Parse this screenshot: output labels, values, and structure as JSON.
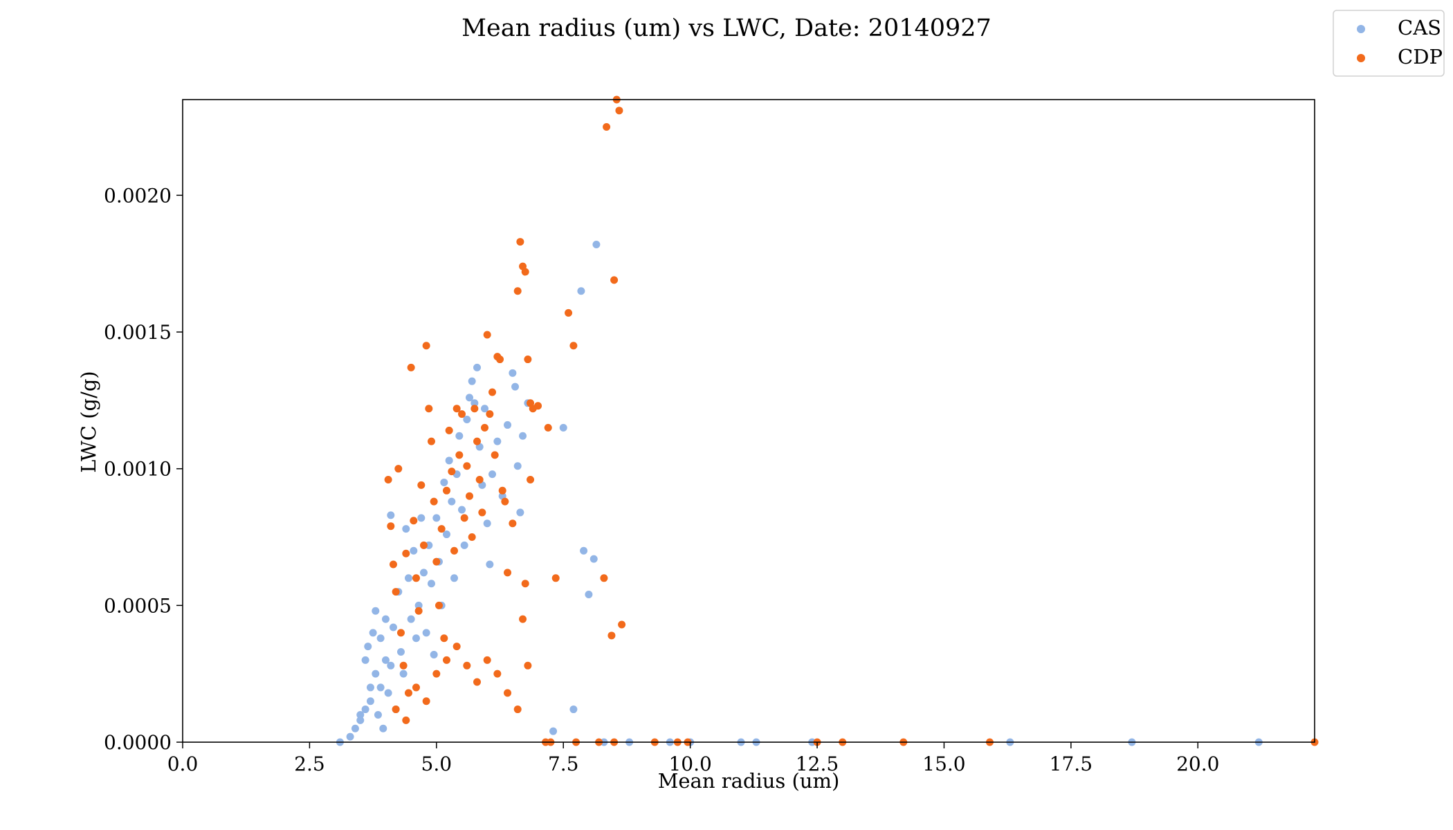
{
  "chart_data": {
    "type": "scatter",
    "title": "Mean radius (um) vs LWC, Date: 20140927",
    "xlabel": "Mean radius (um)",
    "ylabel": "LWC (g/g)",
    "xlim": [
      0,
      22.3
    ],
    "ylim": [
      0,
      0.00235
    ],
    "xticks": [
      0.0,
      2.5,
      5.0,
      7.5,
      10.0,
      12.5,
      15.0,
      17.5,
      20.0
    ],
    "xtick_labels": [
      "0.0",
      "2.5",
      "5.0",
      "7.5",
      "10.0",
      "12.5",
      "15.0",
      "17.5",
      "20.0"
    ],
    "yticks": [
      0.0,
      0.0005,
      0.001,
      0.0015,
      0.002
    ],
    "ytick_labels": [
      "0.0000",
      "0.0005",
      "0.0010",
      "0.0015",
      "0.0020"
    ],
    "grid": false,
    "legend_position": "top-right",
    "series": [
      {
        "name": "CAS",
        "color": "#92b5e6",
        "points": [
          [
            3.1,
            0.0
          ],
          [
            3.3,
            2e-05
          ],
          [
            3.4,
            5e-05
          ],
          [
            3.5,
            8e-05
          ],
          [
            3.5,
            0.0001
          ],
          [
            3.6,
            0.00012
          ],
          [
            3.6,
            0.0003
          ],
          [
            3.65,
            0.00035
          ],
          [
            3.7,
            0.0002
          ],
          [
            3.7,
            0.00015
          ],
          [
            3.75,
            0.0004
          ],
          [
            3.8,
            0.00048
          ],
          [
            3.8,
            0.00025
          ],
          [
            3.85,
            0.0001
          ],
          [
            3.9,
            0.00038
          ],
          [
            3.9,
            0.0002
          ],
          [
            3.95,
            5e-05
          ],
          [
            4.0,
            0.0003
          ],
          [
            4.0,
            0.00045
          ],
          [
            4.05,
            0.00018
          ],
          [
            4.1,
            0.00083
          ],
          [
            4.1,
            0.00028
          ],
          [
            4.15,
            0.00042
          ],
          [
            4.2,
            0.00012
          ],
          [
            4.25,
            0.00055
          ],
          [
            4.3,
            0.00033
          ],
          [
            4.35,
            0.00025
          ],
          [
            4.4,
            0.00078
          ],
          [
            4.45,
            0.0006
          ],
          [
            4.5,
            0.00045
          ],
          [
            4.55,
            0.0007
          ],
          [
            4.6,
            0.00038
          ],
          [
            4.65,
            0.0005
          ],
          [
            4.7,
            0.00082
          ],
          [
            4.75,
            0.00062
          ],
          [
            4.8,
            0.0004
          ],
          [
            4.85,
            0.00072
          ],
          [
            4.9,
            0.00058
          ],
          [
            4.95,
            0.00032
          ],
          [
            5.0,
            0.00082
          ],
          [
            5.05,
            0.00066
          ],
          [
            5.1,
            0.0005
          ],
          [
            5.15,
            0.00095
          ],
          [
            5.2,
            0.00076
          ],
          [
            5.25,
            0.00103
          ],
          [
            5.3,
            0.00088
          ],
          [
            5.35,
            0.0006
          ],
          [
            5.4,
            0.00098
          ],
          [
            5.45,
            0.00112
          ],
          [
            5.5,
            0.00085
          ],
          [
            5.55,
            0.00072
          ],
          [
            5.6,
            0.00118
          ],
          [
            5.65,
            0.00126
          ],
          [
            5.7,
            0.00132
          ],
          [
            5.75,
            0.00124
          ],
          [
            5.8,
            0.00137
          ],
          [
            5.85,
            0.00108
          ],
          [
            5.9,
            0.00094
          ],
          [
            5.95,
            0.00122
          ],
          [
            6.0,
            0.0008
          ],
          [
            6.05,
            0.00065
          ],
          [
            6.1,
            0.00098
          ],
          [
            6.2,
            0.0011
          ],
          [
            6.3,
            0.0009
          ],
          [
            6.4,
            0.00116
          ],
          [
            6.5,
            0.00135
          ],
          [
            6.55,
            0.0013
          ],
          [
            6.6,
            0.00101
          ],
          [
            6.65,
            0.00084
          ],
          [
            6.7,
            0.00112
          ],
          [
            6.8,
            0.00124
          ],
          [
            7.5,
            0.00115
          ],
          [
            7.7,
            0.00012
          ],
          [
            7.85,
            0.00165
          ],
          [
            7.9,
            0.0007
          ],
          [
            8.0,
            0.00054
          ],
          [
            8.1,
            0.00067
          ],
          [
            8.15,
            0.00182
          ],
          [
            7.3,
            4e-05
          ],
          [
            8.3,
            0.0
          ],
          [
            8.8,
            0.0
          ],
          [
            9.6,
            0.0
          ],
          [
            10.0,
            0.0
          ],
          [
            11.0,
            0.0
          ],
          [
            11.3,
            0.0
          ],
          [
            12.4,
            0.0
          ],
          [
            16.3,
            0.0
          ],
          [
            18.7,
            0.0
          ],
          [
            21.2,
            0.0
          ]
        ]
      },
      {
        "name": "CDP",
        "color": "#f26a1b",
        "points": [
          [
            4.05,
            0.00096
          ],
          [
            4.1,
            0.00079
          ],
          [
            4.15,
            0.00065
          ],
          [
            4.2,
            0.00055
          ],
          [
            4.25,
            0.001
          ],
          [
            4.3,
            0.0004
          ],
          [
            4.35,
            0.00028
          ],
          [
            4.4,
            0.00069
          ],
          [
            4.45,
            0.00018
          ],
          [
            4.5,
            0.00137
          ],
          [
            4.55,
            0.00081
          ],
          [
            4.6,
            0.0006
          ],
          [
            4.65,
            0.00048
          ],
          [
            4.7,
            0.00094
          ],
          [
            4.75,
            0.00072
          ],
          [
            4.8,
            0.00145
          ],
          [
            4.85,
            0.00122
          ],
          [
            4.9,
            0.0011
          ],
          [
            4.95,
            0.00088
          ],
          [
            5.0,
            0.00066
          ],
          [
            5.05,
            0.0005
          ],
          [
            5.1,
            0.00078
          ],
          [
            5.15,
            0.00038
          ],
          [
            5.2,
            0.00092
          ],
          [
            5.25,
            0.00114
          ],
          [
            5.3,
            0.00099
          ],
          [
            5.35,
            0.0007
          ],
          [
            5.4,
            0.00122
          ],
          [
            5.45,
            0.00105
          ],
          [
            5.5,
            0.0012
          ],
          [
            5.55,
            0.00082
          ],
          [
            5.6,
            0.00101
          ],
          [
            5.65,
            0.0009
          ],
          [
            5.7,
            0.00075
          ],
          [
            5.75,
            0.00122
          ],
          [
            5.8,
            0.0011
          ],
          [
            5.85,
            0.00096
          ],
          [
            5.9,
            0.00084
          ],
          [
            5.95,
            0.00115
          ],
          [
            6.0,
            0.00149
          ],
          [
            6.05,
            0.0012
          ],
          [
            6.1,
            0.00128
          ],
          [
            6.15,
            0.00105
          ],
          [
            6.2,
            0.00141
          ],
          [
            6.25,
            0.0014
          ],
          [
            6.3,
            0.00092
          ],
          [
            6.35,
            0.00088
          ],
          [
            6.4,
            0.00062
          ],
          [
            6.5,
            0.0008
          ],
          [
            6.6,
            0.00165
          ],
          [
            6.65,
            0.00183
          ],
          [
            6.7,
            0.00174
          ],
          [
            6.75,
            0.00172
          ],
          [
            6.8,
            0.0014
          ],
          [
            6.85,
            0.00124
          ],
          [
            6.9,
            0.00122
          ],
          [
            7.0,
            0.00123
          ],
          [
            6.85,
            0.00096
          ],
          [
            6.75,
            0.00058
          ],
          [
            7.2,
            0.00115
          ],
          [
            7.35,
            0.0006
          ],
          [
            7.6,
            0.00157
          ],
          [
            7.7,
            0.00145
          ],
          [
            8.3,
            0.0006
          ],
          [
            8.35,
            0.00225
          ],
          [
            8.45,
            0.00039
          ],
          [
            8.5,
            0.00169
          ],
          [
            8.55,
            0.00235
          ],
          [
            8.6,
            0.00231
          ],
          [
            8.65,
            0.00043
          ],
          [
            4.2,
            0.00012
          ],
          [
            4.4,
            8e-05
          ],
          [
            4.6,
            0.0002
          ],
          [
            4.8,
            0.00015
          ],
          [
            5.0,
            0.00025
          ],
          [
            5.2,
            0.0003
          ],
          [
            5.4,
            0.00035
          ],
          [
            5.6,
            0.00028
          ],
          [
            5.8,
            0.00022
          ],
          [
            6.0,
            0.0003
          ],
          [
            6.2,
            0.00025
          ],
          [
            6.4,
            0.00018
          ],
          [
            6.6,
            0.00012
          ],
          [
            6.7,
            0.00045
          ],
          [
            6.8,
            0.00028
          ],
          [
            7.15,
            0.0
          ],
          [
            7.25,
            0.0
          ],
          [
            7.75,
            0.0
          ],
          [
            8.2,
            0.0
          ],
          [
            8.5,
            0.0
          ],
          [
            9.3,
            0.0
          ],
          [
            9.75,
            0.0
          ],
          [
            9.95,
            0.0
          ],
          [
            12.5,
            0.0
          ],
          [
            13.0,
            0.0
          ],
          [
            14.2,
            0.0
          ],
          [
            15.9,
            0.0
          ],
          [
            22.3,
            0.0
          ]
        ]
      }
    ]
  }
}
